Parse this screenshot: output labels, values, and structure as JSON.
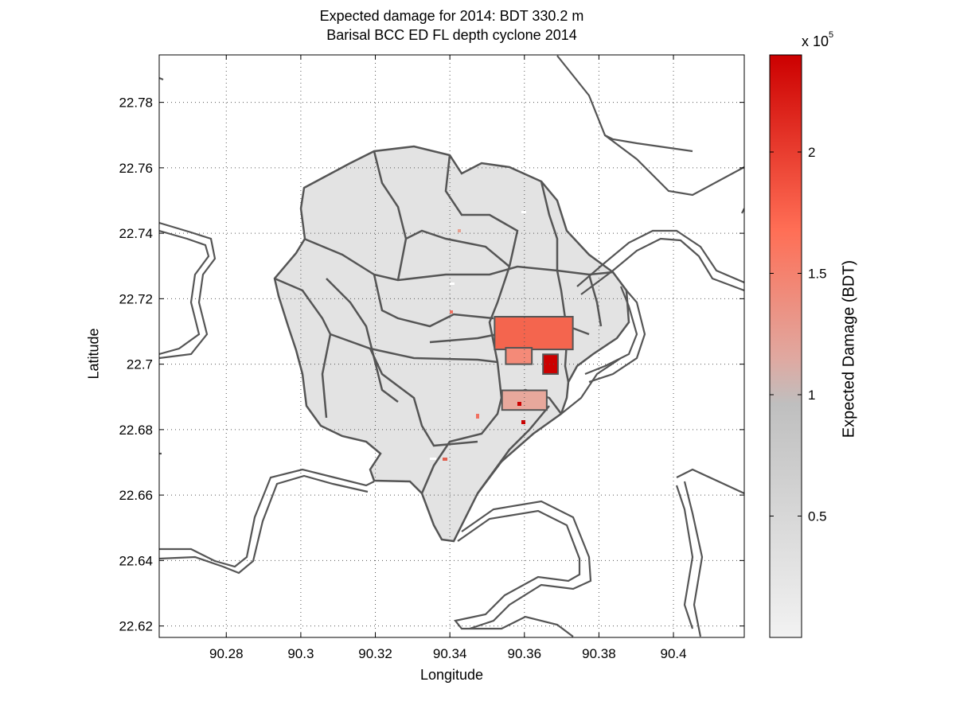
{
  "title": {
    "line1": "Expected damage for 2014: BDT 330.2 m",
    "line2": "Barisal BCC ED FL depth cyclone 2014"
  },
  "axes": {
    "xlabel": "Longitude",
    "ylabel": "Latitude",
    "xlim": [
      90.262,
      90.419
    ],
    "ylim": [
      22.6165,
      22.7945
    ],
    "xticks": [
      "90.28",
      "90.3",
      "90.32",
      "90.34",
      "90.36",
      "90.38",
      "90.4"
    ],
    "xtick_values": [
      90.28,
      90.3,
      90.32,
      90.34,
      90.36,
      90.38,
      90.4
    ],
    "yticks": [
      "22.62",
      "22.64",
      "22.66",
      "22.68",
      "22.7",
      "22.72",
      "22.74",
      "22.76",
      "22.78"
    ],
    "ytick_values": [
      22.62,
      22.64,
      22.66,
      22.68,
      22.7,
      22.72,
      22.74,
      22.76,
      22.78
    ],
    "grid": true
  },
  "colorbar": {
    "label": "Expected Damage (BDT)",
    "exponent_base": "x 10",
    "exponent_power": "5",
    "range": [
      0,
      2.4
    ],
    "ticks": [
      "0.5",
      "1",
      "1.5",
      "2"
    ],
    "tick_values": [
      0.5,
      1,
      1.5,
      2
    ],
    "colors": [
      "#f2f2f2",
      "#c0c0c0",
      "#ff6e55",
      "#cc0000"
    ]
  },
  "map_data": {
    "high_damage_zones": [
      {
        "lon": [
          90.352,
          90.373
        ],
        "lat": [
          22.7045,
          22.7145
        ],
        "level": 1.6
      },
      {
        "lon": [
          90.355,
          90.362
        ],
        "lat": [
          22.7,
          22.705
        ],
        "level": 1.3
      },
      {
        "lon": [
          90.365,
          90.369
        ],
        "lat": [
          22.697,
          22.703
        ],
        "level": 2.4
      },
      {
        "lon": [
          90.354,
          90.366
        ],
        "lat": [
          22.686,
          22.692
        ],
        "level": 1.2
      }
    ]
  }
}
